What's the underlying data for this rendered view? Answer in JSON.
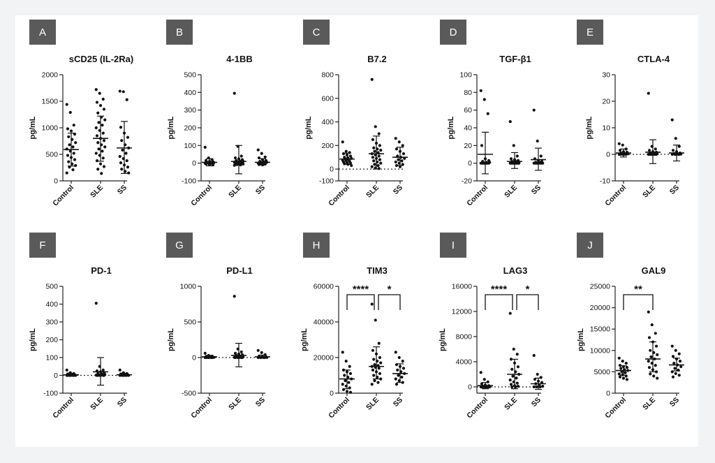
{
  "chart_data": [
    {
      "panel": "A",
      "title": "sCD25 (IL-2Ra)",
      "type": "scatter",
      "ylabel": "pg/mL",
      "ylim": [
        0,
        2000
      ],
      "yticks": [
        "0",
        "500",
        "1000",
        "1500",
        "2000"
      ],
      "categories": [
        "Control",
        "SLE",
        "SS"
      ],
      "baseline": null,
      "series": [
        {
          "category": "Control",
          "mean": 590,
          "sd_low": 280,
          "sd_high": 900,
          "values": [
            1440,
            1290,
            1050,
            980,
            940,
            880,
            830,
            780,
            720,
            680,
            640,
            600,
            560,
            520,
            480,
            440,
            400,
            360,
            320,
            290,
            260,
            210,
            150
          ]
        },
        {
          "category": "SLE",
          "mean": 800,
          "sd_low": 370,
          "sd_high": 1220,
          "values": [
            1720,
            1650,
            1540,
            1480,
            1420,
            1350,
            1280,
            1200,
            1150,
            1100,
            1050,
            1000,
            950,
            900,
            850,
            800,
            760,
            720,
            680,
            640,
            600,
            560,
            520,
            480,
            430,
            380,
            320,
            270,
            220,
            140
          ]
        },
        {
          "category": "SS",
          "mean": 620,
          "sd_low": 140,
          "sd_high": 1120,
          "values": [
            1690,
            1680,
            1530,
            1010,
            900,
            820,
            760,
            680,
            620,
            580,
            520,
            460,
            420,
            380,
            340,
            300,
            260,
            220,
            180,
            150
          ]
        }
      ]
    },
    {
      "panel": "B",
      "title": "4-1BB",
      "type": "scatter",
      "ylabel": "pg/mL",
      "ylim": [
        -100,
        500
      ],
      "yticks": [
        "-100",
        "0",
        "100",
        "200",
        "300",
        "400",
        "500"
      ],
      "categories": [
        "Control",
        "SLE",
        "SS"
      ],
      "baseline": null,
      "series": [
        {
          "category": "Control",
          "mean": 5,
          "sd_low": -15,
          "sd_high": 25,
          "values": [
            90,
            30,
            20,
            15,
            10,
            8,
            5,
            4,
            3,
            2,
            1,
            0,
            0,
            -2,
            -5,
            -8,
            -10
          ]
        },
        {
          "category": "SLE",
          "mean": 10,
          "sd_low": -60,
          "sd_high": 100,
          "values": [
            395,
            95,
            40,
            30,
            25,
            20,
            15,
            12,
            10,
            8,
            6,
            5,
            4,
            3,
            2,
            1,
            0,
            0,
            -2,
            -5,
            -8,
            -10,
            -12
          ]
        },
        {
          "category": "SS",
          "mean": 5,
          "sd_low": -10,
          "sd_high": 25,
          "values": [
            75,
            55,
            35,
            30,
            20,
            15,
            10,
            8,
            5,
            3,
            1,
            0,
            -2,
            -5,
            -8,
            -10
          ]
        }
      ]
    },
    {
      "panel": "C",
      "title": "B7.2",
      "type": "scatter",
      "ylabel": "pg/mL",
      "ylim": [
        -100,
        800
      ],
      "yticks": [
        "-100",
        "0",
        "200",
        "400",
        "600",
        "800"
      ],
      "categories": [
        "Control",
        "SLE",
        "SS"
      ],
      "baseline": 0,
      "series": [
        {
          "category": "Control",
          "mean": 85,
          "sd_low": 40,
          "sd_high": 135,
          "values": [
            230,
            150,
            140,
            130,
            120,
            110,
            100,
            95,
            90,
            85,
            80,
            75,
            70,
            65,
            60,
            55,
            50,
            45,
            40,
            30
          ]
        },
        {
          "category": "SLE",
          "mean": 130,
          "sd_low": 0,
          "sd_high": 280,
          "values": [
            760,
            360,
            300,
            250,
            220,
            200,
            180,
            170,
            160,
            150,
            140,
            130,
            120,
            110,
            100,
            90,
            80,
            70,
            60,
            50,
            40,
            30,
            20,
            10,
            5
          ]
        },
        {
          "category": "SS",
          "mean": 100,
          "sd_low": 30,
          "sd_high": 185,
          "values": [
            260,
            230,
            200,
            170,
            150,
            130,
            110,
            100,
            90,
            80,
            70,
            60,
            50,
            40,
            30,
            20
          ]
        }
      ]
    },
    {
      "panel": "D",
      "title": "TGF-β1",
      "type": "scatter",
      "ylabel": "pg/mL",
      "ylim": [
        -20,
        100
      ],
      "yticks": [
        "-20",
        "0",
        "20",
        "40",
        "60",
        "80",
        "100"
      ],
      "categories": [
        "Control",
        "SLE",
        "SS"
      ],
      "baseline": null,
      "series": [
        {
          "category": "Control",
          "mean": 10,
          "sd_low": -12,
          "sd_high": 35,
          "values": [
            82,
            72,
            56,
            20,
            5,
            3,
            2,
            1,
            1,
            0,
            0,
            0,
            0,
            0,
            0,
            0,
            0,
            0,
            0
          ]
        },
        {
          "category": "SLE",
          "mean": 2,
          "sd_low": -6,
          "sd_high": 12,
          "values": [
            47,
            20,
            8,
            5,
            4,
            3,
            2,
            2,
            1,
            1,
            0,
            0,
            0,
            0,
            0,
            0,
            0,
            0,
            0,
            0,
            0
          ]
        },
        {
          "category": "SS",
          "mean": 4,
          "sd_low": -8,
          "sd_high": 17,
          "values": [
            60,
            25,
            8,
            5,
            3,
            2,
            1,
            1,
            0,
            0,
            0,
            0,
            0,
            0,
            0,
            0
          ]
        }
      ]
    },
    {
      "panel": "E",
      "title": "CTLA-4",
      "type": "scatter",
      "ylabel": "pg/mL",
      "ylim": [
        -10,
        30
      ],
      "yticks": [
        "-10",
        "0",
        "10",
        "20",
        "30"
      ],
      "categories": [
        "Control",
        "SLE",
        "SS"
      ],
      "baseline": 0,
      "series": [
        {
          "category": "Control",
          "mean": 0.5,
          "sd_low": -1,
          "sd_high": 2,
          "values": [
            4,
            3.5,
            2,
            1.5,
            1,
            0.8,
            0.5,
            0.3,
            0.2,
            0.1,
            0,
            0,
            0,
            0,
            0,
            0
          ]
        },
        {
          "category": "SLE",
          "mean": 0.8,
          "sd_low": -3.5,
          "sd_high": 5.5,
          "values": [
            23,
            3,
            2,
            1.5,
            1,
            0.8,
            0.5,
            0.3,
            0.2,
            0.1,
            0,
            0,
            0,
            0,
            0,
            0,
            0,
            0,
            0
          ]
        },
        {
          "category": "SS",
          "mean": 0.5,
          "sd_low": -2.5,
          "sd_high": 3.5,
          "values": [
            13,
            6,
            3,
            1.5,
            1,
            0.5,
            0.3,
            0.2,
            0.1,
            0,
            0,
            0,
            0,
            0
          ]
        }
      ]
    },
    {
      "panel": "F",
      "title": "PD-1",
      "type": "scatter",
      "ylabel": "pg/mL",
      "ylim": [
        -100,
        500
      ],
      "yticks": [
        "-100",
        "0",
        "100",
        "200",
        "300",
        "400",
        "500"
      ],
      "categories": [
        "Control",
        "SLE",
        "SS"
      ],
      "baseline": 0,
      "series": [
        {
          "category": "Control",
          "mean": 3,
          "sd_low": -5,
          "sd_high": 12,
          "values": [
            30,
            15,
            10,
            8,
            5,
            3,
            2,
            1,
            0,
            0,
            0,
            0,
            0,
            0,
            0
          ]
        },
        {
          "category": "SLE",
          "mean": 20,
          "sd_low": -55,
          "sd_high": 100,
          "values": [
            405,
            50,
            30,
            25,
            20,
            15,
            10,
            8,
            5,
            3,
            2,
            1,
            0,
            0,
            0,
            0,
            0,
            0
          ]
        },
        {
          "category": "SS",
          "mean": 3,
          "sd_low": -5,
          "sd_high": 12,
          "values": [
            30,
            15,
            10,
            8,
            5,
            3,
            2,
            1,
            0,
            0,
            0,
            0,
            0
          ]
        }
      ]
    },
    {
      "panel": "G",
      "title": "PD-L1",
      "type": "scatter",
      "ylabel": "pg/mL",
      "ylim": [
        -500,
        1000
      ],
      "yticks": [
        "-500",
        "0",
        "500",
        "1000"
      ],
      "categories": [
        "Control",
        "SLE",
        "SS"
      ],
      "baseline": 0,
      "series": [
        {
          "category": "Control",
          "mean": 10,
          "sd_low": -10,
          "sd_high": 30,
          "values": [
            60,
            30,
            20,
            15,
            10,
            8,
            5,
            3,
            2,
            1,
            0,
            0,
            0,
            0,
            0
          ]
        },
        {
          "category": "SLE",
          "mean": 30,
          "sd_low": -130,
          "sd_high": 200,
          "values": [
            860,
            120,
            80,
            60,
            50,
            40,
            30,
            20,
            10,
            5,
            3,
            2,
            1,
            0,
            0,
            0,
            0
          ]
        },
        {
          "category": "SS",
          "mean": 10,
          "sd_low": -10,
          "sd_high": 35,
          "values": [
            100,
            70,
            40,
            20,
            15,
            10,
            5,
            3,
            1,
            0,
            0,
            0
          ]
        }
      ]
    },
    {
      "panel": "H",
      "title": "TIM3",
      "type": "scatter",
      "ylabel": "pg/mL",
      "ylim": [
        0,
        60000
      ],
      "yticks": [
        "0",
        "20000",
        "40000",
        "60000"
      ],
      "categories": [
        "Control",
        "SLE",
        "SS"
      ],
      "baseline": null,
      "significance": [
        {
          "from": "Control",
          "to": "SLE",
          "label": "****"
        },
        {
          "from": "SLE",
          "to": "SS",
          "label": "*"
        }
      ],
      "series": [
        {
          "category": "Control",
          "mean": 8000,
          "sd_low": 2500,
          "sd_high": 13000,
          "values": [
            23000,
            18000,
            15000,
            13000,
            12000,
            11000,
            10000,
            9000,
            8000,
            7000,
            6000,
            5000,
            4000,
            3000,
            2000,
            1000,
            500
          ]
        },
        {
          "category": "SLE",
          "mean": 15000,
          "sd_low": 8000,
          "sd_high": 26000,
          "values": [
            50000,
            41000,
            28000,
            24000,
            22000,
            20000,
            19000,
            18000,
            17000,
            16000,
            15500,
            15000,
            14500,
            14000,
            13000,
            12000,
            11000,
            10000,
            9000,
            8000,
            7000,
            6000,
            5000
          ]
        },
        {
          "category": "SS",
          "mean": 11000,
          "sd_low": 6000,
          "sd_high": 16500,
          "values": [
            23000,
            20000,
            18000,
            16000,
            15000,
            14000,
            13000,
            12000,
            11000,
            10000,
            9000,
            8000,
            7000,
            6000,
            5000
          ]
        }
      ]
    },
    {
      "panel": "I",
      "title": "LAG3",
      "type": "scatter",
      "ylabel": "pg/mL",
      "ylim": [
        -1000,
        16000
      ],
      "yticks": [
        "0",
        "4000",
        "8000",
        "12000",
        "16000"
      ],
      "categories": [
        "Control",
        "SLE",
        "SS"
      ],
      "baseline": 0,
      "significance": [
        {
          "from": "Control",
          "to": "SLE",
          "label": "****"
        },
        {
          "from": "SLE",
          "to": "SS",
          "label": "*"
        }
      ],
      "series": [
        {
          "category": "Control",
          "mean": 200,
          "sd_low": -300,
          "sd_high": 700,
          "values": [
            2300,
            1200,
            800,
            500,
            300,
            200,
            100,
            50,
            0,
            0,
            0,
            0,
            0,
            0,
            0,
            0,
            0
          ]
        },
        {
          "category": "SLE",
          "mean": 2000,
          "sd_low": -300,
          "sd_high": 4400,
          "values": [
            11700,
            6000,
            5200,
            4400,
            3800,
            3200,
            2800,
            2400,
            2000,
            1700,
            1400,
            1100,
            800,
            600,
            400,
            200,
            100,
            0,
            0
          ]
        },
        {
          "category": "SS",
          "mean": 500,
          "sd_low": -400,
          "sd_high": 1400,
          "values": [
            5000,
            2000,
            1500,
            1200,
            900,
            700,
            500,
            300,
            100,
            0,
            0,
            0
          ]
        }
      ]
    },
    {
      "panel": "J",
      "title": "GAL9",
      "type": "scatter",
      "ylabel": "pg/mL",
      "ylim": [
        0,
        25000
      ],
      "yticks": [
        "0",
        "5000",
        "10000",
        "15000",
        "20000",
        "25000"
      ],
      "categories": [
        "Control",
        "SLE",
        "SS"
      ],
      "baseline": null,
      "significance": [
        {
          "from": "Control",
          "to": "SLE",
          "label": "**"
        }
      ],
      "series": [
        {
          "category": "Control",
          "mean": 5300,
          "sd_low": 4200,
          "sd_high": 6400,
          "values": [
            8200,
            7500,
            7000,
            6500,
            6200,
            6000,
            5800,
            5500,
            5300,
            5000,
            4800,
            4500,
            4300,
            4000,
            3800,
            3500,
            3200
          ]
        },
        {
          "category": "SLE",
          "mean": 8000,
          "sd_low": 5000,
          "sd_high": 12000,
          "values": [
            19000,
            16000,
            14000,
            13000,
            12000,
            11000,
            10000,
            9500,
            9000,
            8500,
            8000,
            7500,
            7000,
            6500,
            6000,
            5500,
            5000,
            4500,
            4000,
            3500
          ]
        },
        {
          "category": "SS",
          "mean": 6600,
          "sd_low": 5200,
          "sd_high": 8200,
          "values": [
            11000,
            10000,
            9200,
            8600,
            8000,
            7500,
            7000,
            6600,
            6200,
            5800,
            5400,
            5000,
            4600,
            4200,
            3800
          ]
        }
      ]
    }
  ]
}
